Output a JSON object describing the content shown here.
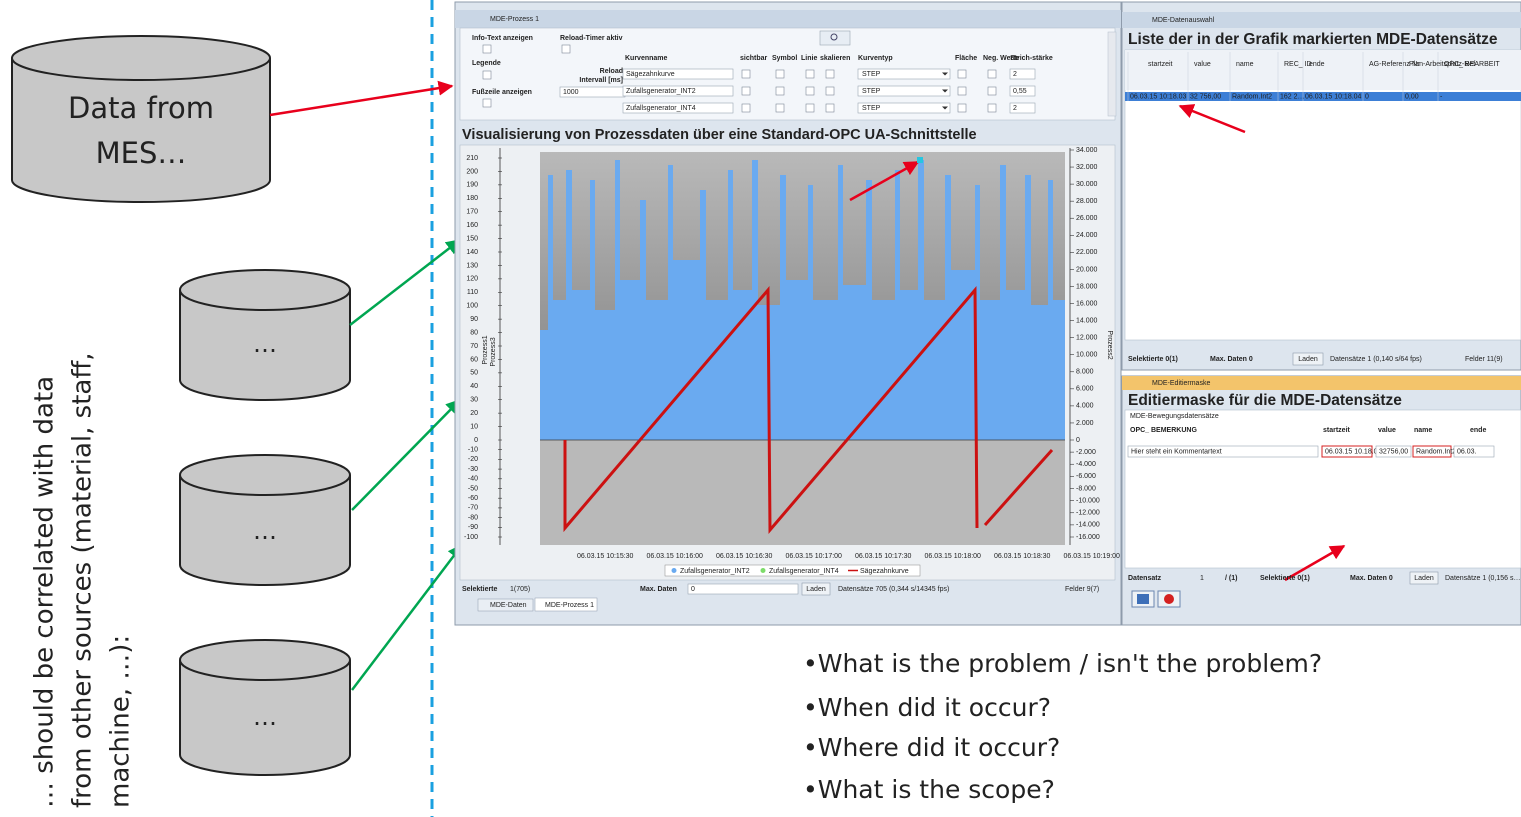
{
  "slide": {
    "source_main": [
      "Data from",
      "MES…"
    ],
    "source_other": [
      "…",
      "…",
      "…"
    ],
    "side_text": [
      "… should be correlated with data",
      "from other sources (material, staff,",
      "machine, …):"
    ],
    "bullets": [
      "•What is the problem / isn't the problem?",
      "•When did it occur?",
      "•Where did it occur?",
      "•What is the scope?"
    ]
  },
  "process_window": {
    "title": "MDE-Prozess 1",
    "options": {
      "info_text": "Info-Text anzeigen",
      "reload_timer": "Reload-Timer aktiv",
      "legend": "Legende",
      "reload_interval": [
        "Reload",
        "Intervall [ms]"
      ],
      "interval_value": "1000",
      "footer": "Fußzeile anzeigen"
    },
    "curve_header": [
      "Kurvenname",
      "sichtbar",
      "Symbol",
      "Linie",
      "skalieren",
      "Kurventyp",
      "Fläche",
      "Neg. Werte",
      "Strich-stärke"
    ],
    "curves": [
      [
        "Sägezahnkurve",
        "STEP",
        "2"
      ],
      [
        "Zufallsgenerator_INT2",
        "STEP",
        "0,55"
      ],
      [
        "Zufallsgenerator_INT4",
        "STEP",
        "2"
      ]
    ],
    "chart": {
      "title": "Visualisierung von Prozessdaten über eine Standard-OPC UA-Schnittstelle",
      "y1_label": "Prozess1",
      "y3_label": "Prozess3",
      "y2_label": "Prozess2",
      "y1_ticks": [
        "210",
        "200",
        "190",
        "180",
        "170",
        "160",
        "150",
        "140",
        "130",
        "120",
        "110",
        "100",
        "90",
        "80",
        "70",
        "60",
        "50",
        "40",
        "30",
        "20",
        "10",
        "0",
        "-10",
        "-20",
        "-30",
        "-40",
        "-50",
        "-60",
        "-70",
        "-80",
        "-90",
        "-100"
      ],
      "y2_ticks": [
        "34.000",
        "32.000",
        "30.000",
        "28.000",
        "26.000",
        "24.000",
        "22.000",
        "20.000",
        "18.000",
        "16.000",
        "14.000",
        "12.000",
        "10.000",
        "8.000",
        "6.000",
        "4.000",
        "2.000",
        "0",
        "-2.000",
        "-4.000",
        "-6.000",
        "-8.000",
        "-10.000",
        "-12.000",
        "-14.000",
        "-16.000"
      ],
      "x_labels": [
        "06.03.15 10:15:30",
        "06.03.15 10:16:00",
        "06.03.15 10:16:30",
        "06.03.15 10:17:00",
        "06.03.15 10:17:30",
        "06.03.15 10:18:00",
        "06.03.15 10:18:30",
        "06.03.15 10:19:00"
      ],
      "legend": [
        "Zufallsgenerator_INT2",
        "Zufallsgenerator_INT4",
        "Sägezahnkurve"
      ]
    },
    "footer": {
      "selected_label": "Selektierte",
      "selected": "1(705)",
      "max_label": "Max. Daten",
      "max": "0",
      "load": "Laden",
      "records": "Datensätze  705 (0,344 s/14345 fps)",
      "fields": "Felder  9(7)"
    },
    "tabs": [
      "MDE-Daten",
      "MDE-Prozess 1"
    ]
  },
  "selection_window": {
    "title": "MDE-Datenauswahl",
    "heading": "Liste der in der Grafik markierten MDE-Datensätze",
    "columns": [
      "startzeit",
      "value",
      "name",
      "REC_ ID",
      "ende",
      "AG-Referenz-Nr",
      "Plan-Arbeitsplatz-Ref",
      "OPC_ BEARBEIT"
    ],
    "row": [
      "06.03.15 10:18.03",
      "32 756,00",
      "Random.Int2",
      "162 2…",
      "06.03.15 10:18.04",
      "0",
      "0,00",
      "-"
    ],
    "footer": {
      "selected": "Selektierte  0(1)",
      "max": "Max. Daten  0",
      "load": "Laden",
      "records": "Datensätze  1 (0,140 s/64 fps)",
      "fields": "Felder  11(9)"
    }
  },
  "edit_window": {
    "title": "MDE-Editiermaske",
    "heading": "Editiermaske für die MDE-Datensätze",
    "group": "MDE-Bewegungsdatensätze",
    "columns": [
      "OPC_ BEMERKUNG",
      "startzeit",
      "value",
      "name",
      "ende"
    ],
    "row": [
      "Hier steht ein Kommentartext",
      "06.03.15 10.18.03",
      "32756,00",
      "Random.Int2",
      "06.03."
    ],
    "footer": {
      "record": "Datensatz",
      "index": "1",
      "of": "/ (1)",
      "selected": "Selektierte  0(1)",
      "max": "Max. Daten  0",
      "load": "Laden",
      "records": "Datensätze  1 (0,156 s…"
    }
  }
}
